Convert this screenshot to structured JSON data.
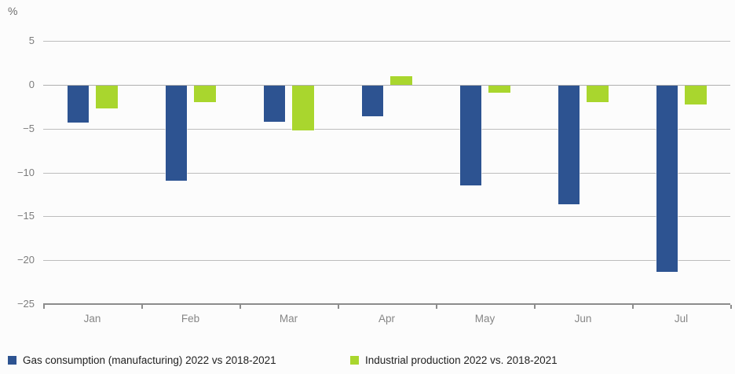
{
  "unit_label": "%",
  "chart_data": {
    "type": "bar",
    "title": "",
    "xlabel": "",
    "ylabel": "%",
    "unit_label": "%",
    "categories": [
      "Jan",
      "Feb",
      "Mar",
      "Apr",
      "May",
      "Jun",
      "Jul"
    ],
    "series": [
      {
        "name": "Gas consumption (manufacturing) 2022 vs 2018-2021",
        "color": "#2d5391",
        "values": [
          -4.3,
          -10.9,
          -4.2,
          -3.6,
          -11.5,
          -13.6,
          -21.3
        ]
      },
      {
        "name": "Industrial production 2022 vs. 2018-2021",
        "color": "#a9d62e",
        "values": [
          -2.7,
          -2.0,
          -5.2,
          1.0,
          -0.9,
          -2.0,
          -2.2
        ]
      }
    ],
    "ylim": [
      -25,
      5
    ],
    "yticks": [
      5,
      0,
      -5,
      -10,
      -15,
      -20,
      -25
    ],
    "ytick_labels": [
      "5",
      "0",
      "−5",
      "−10",
      "−15",
      "−20",
      "−25"
    ],
    "grid": true,
    "legend_position": "bottom",
    "colors": {
      "grid": "#bdbdbd",
      "zero_line": "#b0b0b0",
      "axis": "#8c8c8c",
      "tick_text": "#7d7d7d",
      "legend_text": "#1f1f1f",
      "background": "#fcfcfc"
    }
  }
}
